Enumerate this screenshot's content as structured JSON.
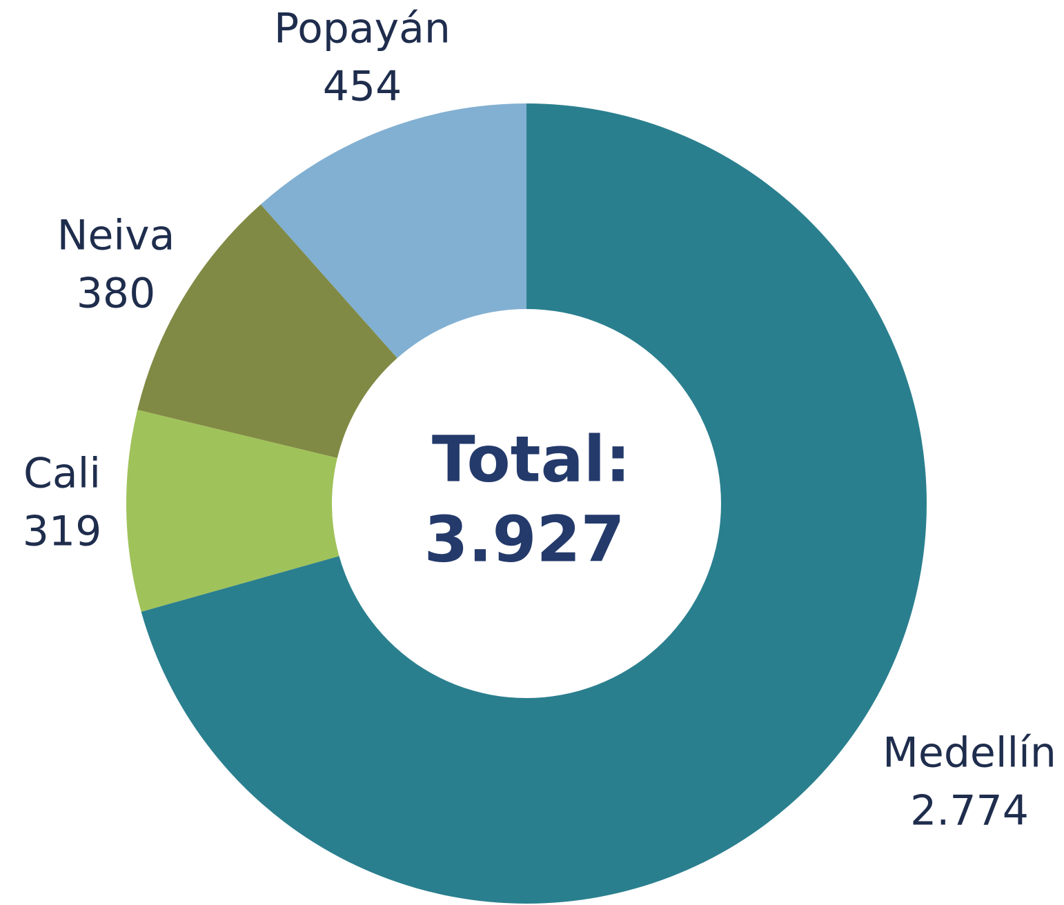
{
  "chart_data": {
    "type": "donut",
    "categories": [
      "Medellín",
      "Cali",
      "Neiva",
      "Popayán"
    ],
    "values": [
      2774,
      319,
      380,
      454
    ],
    "value_labels": [
      "2.774",
      "319",
      "380",
      "454"
    ],
    "colors": [
      "#2a7f8e",
      "#a0c25a",
      "#818a44",
      "#82b0d2"
    ],
    "center_label": "Total:",
    "total": 3927,
    "total_label": "3.927"
  }
}
